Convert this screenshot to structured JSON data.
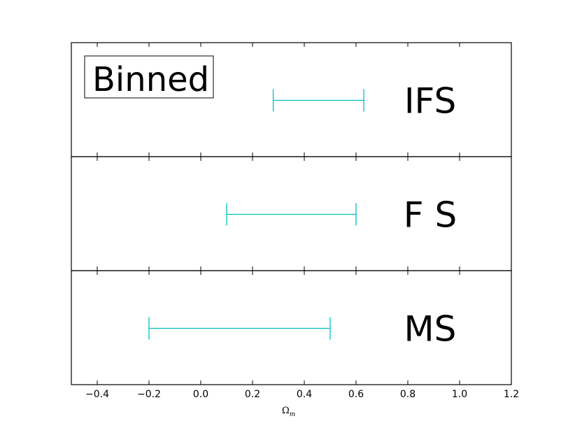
{
  "chart_data": {
    "type": "errorbar",
    "title": "",
    "legend_label": "Binned",
    "legend_placement": "top-left",
    "xlabel": "Ω",
    "xlabel_subscript": "m",
    "xlim": [
      -0.5,
      1.2
    ],
    "xticks": [
      -0.4,
      -0.2,
      0.0,
      0.2,
      0.4,
      0.6,
      0.8,
      1.0,
      1.2
    ],
    "xtick_labels": [
      "−0.4",
      "−0.2",
      "0.0",
      "0.2",
      "0.4",
      "0.6",
      "0.8",
      "1.0",
      "1.2"
    ],
    "grid": false,
    "color": "#00bfbf",
    "series": [
      {
        "name": "IFS",
        "low": 0.28,
        "high": 0.63
      },
      {
        "name": "F S",
        "low": 0.1,
        "high": 0.6
      },
      {
        "name": "MS",
        "low": -0.2,
        "high": 0.5
      }
    ]
  }
}
